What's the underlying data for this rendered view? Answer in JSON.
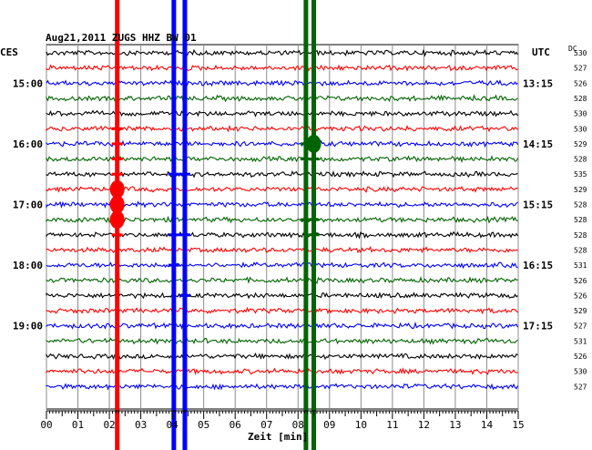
{
  "chart_data": {
    "type": "line",
    "title": "Aug21,2011   ZUGS HHZ BW 01",
    "left_timezone": "CES",
    "right_timezone": "UTC",
    "dc_header": "DC",
    "xlabel": "Zeit [min]",
    "xlim": [
      0,
      15
    ],
    "x_ticks": [
      "00",
      "01",
      "02",
      "03",
      "04",
      "05",
      "06",
      "07",
      "08",
      "09",
      "10",
      "11",
      "12",
      "13",
      "14",
      "15"
    ],
    "trace_colors": [
      "#000000",
      "#ff0000",
      "#0000ff",
      "#006400"
    ],
    "left_hour_labels": [
      {
        "row": 2,
        "label": "15:00"
      },
      {
        "row": 6,
        "label": "16:00"
      },
      {
        "row": 10,
        "label": "17:00"
      },
      {
        "row": 14,
        "label": "18:00"
      },
      {
        "row": 18,
        "label": "19:00"
      }
    ],
    "right_hour_labels": [
      {
        "row": 2,
        "label": "13:15"
      },
      {
        "row": 6,
        "label": "14:15"
      },
      {
        "row": 10,
        "label": "15:15"
      },
      {
        "row": 14,
        "label": "16:15"
      },
      {
        "row": 18,
        "label": "17:15"
      }
    ],
    "dc_values": [
      "530",
      "527",
      "526",
      "528",
      "530",
      "530",
      "529",
      "528",
      "535",
      "529",
      "528",
      "528",
      "528",
      "528",
      "531",
      "526",
      "526",
      "529",
      "527",
      "531",
      "526",
      "530",
      "527"
    ],
    "events": [
      {
        "x_min": 2.25,
        "color": "#ff0000",
        "strong_rows": [
          9,
          10,
          11
        ],
        "spike_rows": [
          5,
          6,
          7,
          8,
          12
        ]
      },
      {
        "x_min": 4.05,
        "color": "#0000ff",
        "strong_rows": [],
        "spike_rows": [
          8,
          12,
          14
        ]
      },
      {
        "x_min": 4.4,
        "color": "#0000ff",
        "strong_rows": [],
        "spike_rows": [
          8,
          12,
          16
        ]
      },
      {
        "x_min": 8.25,
        "color": "#006400",
        "strong_rows": [],
        "spike_rows": [
          6,
          7,
          11
        ]
      },
      {
        "x_min": 8.5,
        "color": "#006400",
        "strong_rows": [
          6
        ],
        "spike_rows": [
          7,
          11,
          12
        ]
      }
    ]
  }
}
